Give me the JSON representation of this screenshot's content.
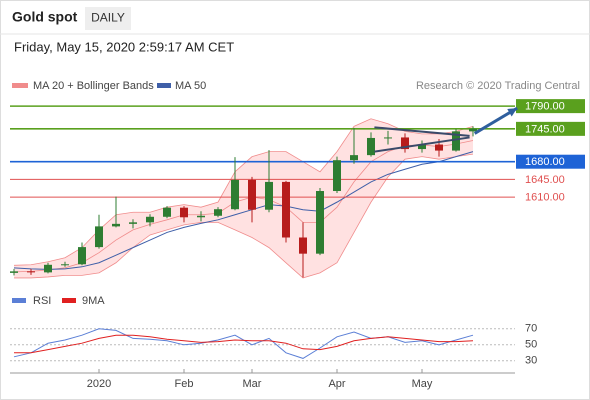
{
  "chart_data": {
    "type": "candlestick",
    "title": "Gold spot",
    "timeframe": "DAILY",
    "subtitle": "Friday, May 15, 2020 2:59:17 AM CET",
    "credit": "Research © 2020 Trading Central",
    "categories": [
      null,
      null,
      null,
      null,
      null,
      "2020",
      null,
      null,
      null,
      null,
      "Feb",
      null,
      null,
      null,
      "Mar",
      null,
      null,
      null,
      null,
      "Apr",
      null,
      null,
      null,
      null,
      "May",
      null,
      null,
      null
    ],
    "open": [
      1460,
      1463,
      1461,
      1476,
      1477,
      1511,
      1552,
      1557,
      1560,
      1571,
      1589,
      1570,
      1573,
      1586,
      1644,
      1585,
      1640,
      1530,
      1498,
      1622,
      1683,
      1693,
      1727,
      1728,
      1705,
      1714,
      1702,
      1740
    ],
    "high": [
      1468,
      1468,
      1480,
      1482,
      1520,
      1575,
      1611,
      1566,
      1576,
      1592,
      1592,
      1582,
      1590,
      1689,
      1650,
      1703,
      1642,
      1560,
      1628,
      1690,
      1747,
      1738,
      1741,
      1736,
      1722,
      1725,
      1745,
      1750
    ],
    "low": [
      1455,
      1456,
      1459,
      1472,
      1475,
      1508,
      1550,
      1548,
      1552,
      1568,
      1560,
      1562,
      1570,
      1584,
      1560,
      1580,
      1520,
      1451,
      1495,
      1618,
      1676,
      1690,
      1714,
      1698,
      1698,
      1690,
      1700,
      1730
    ],
    "close": [
      1463,
      1461,
      1476,
      1477,
      1511,
      1552,
      1557,
      1560,
      1571,
      1589,
      1570,
      1573,
      1586,
      1644,
      1585,
      1640,
      1530,
      1498,
      1622,
      1683,
      1693,
      1727,
      1728,
      1705,
      1714,
      1702,
      1740,
      1745
    ],
    "up_color": "#2e7d32",
    "down_color": "#b71c1c",
    "ylim": [
      1436,
      1812
    ],
    "bands": {
      "name": "MA 20 + Bollinger Bands",
      "color": "#f08c8c",
      "fill": "#ffdcdc",
      "middle": [
        1462,
        1463,
        1466,
        1470,
        1480,
        1500,
        1525,
        1545,
        1556,
        1565,
        1575,
        1575,
        1578,
        1600,
        1610,
        1605,
        1590,
        1560,
        1560,
        1590,
        1640,
        1680,
        1700,
        1712,
        1713,
        1710,
        1715,
        1722
      ],
      "upper": [
        1475,
        1476,
        1482,
        1490,
        1510,
        1545,
        1575,
        1580,
        1580,
        1590,
        1595,
        1590,
        1600,
        1660,
        1690,
        1700,
        1700,
        1680,
        1660,
        1700,
        1750,
        1765,
        1755,
        1740,
        1735,
        1735,
        1740,
        1750
      ],
      "lower": [
        1450,
        1450,
        1452,
        1455,
        1455,
        1460,
        1480,
        1510,
        1535,
        1545,
        1555,
        1560,
        1560,
        1545,
        1530,
        1510,
        1480,
        1450,
        1460,
        1480,
        1540,
        1600,
        1650,
        1685,
        1690,
        1685,
        1690,
        1695
      ]
    },
    "series": [
      {
        "name": "MA 50",
        "color": "#3f5fa8",
        "values": [
          1470,
          1468,
          1467,
          1468,
          1472,
          1480,
          1495,
          1510,
          1525,
          1540,
          1550,
          1558,
          1565,
          1575,
          1585,
          1595,
          1592,
          1585,
          1582,
          1600,
          1620,
          1640,
          1655,
          1665,
          1675,
          1680,
          1690,
          1700
        ]
      }
    ],
    "levels": [
      {
        "value": 1790,
        "label": "1790.00",
        "color": "#5aa01e",
        "boxed": true
      },
      {
        "value": 1745,
        "label": "1745.00",
        "color": "#5aa01e",
        "boxed": true
      },
      {
        "value": 1680,
        "label": "1680.00",
        "color": "#1e63d6",
        "boxed": true
      },
      {
        "value": 1645,
        "label": "1645.00",
        "color": "#e05050",
        "boxed": false
      },
      {
        "value": 1610,
        "label": "1610.00",
        "color": "#e05050",
        "boxed": false
      }
    ],
    "trendlines": [
      {
        "x": [
          21.2,
          26.8
        ],
        "y": [
          1748,
          1731
        ]
      },
      {
        "x": [
          21.2,
          26.8
        ],
        "y": [
          1700,
          1728
        ]
      }
    ],
    "arrow": {
      "x": [
        27.1,
        29.6
      ],
      "y": [
        1736,
        1786
      ],
      "color": "#2f5f9e"
    },
    "rsi": {
      "ylim": [
        16,
        81
      ],
      "yticks": [
        30,
        50,
        70
      ],
      "series": [
        {
          "name": "RSI",
          "color": "#5b7fd6",
          "values": [
            35,
            40,
            52,
            56,
            62,
            70,
            68,
            58,
            57,
            55,
            50,
            52,
            56,
            62,
            50,
            58,
            40,
            33,
            46,
            60,
            66,
            58,
            60,
            53,
            55,
            50,
            56,
            62
          ]
        },
        {
          "name": "9MA",
          "color": "#e02020",
          "values": [
            40,
            40,
            44,
            48,
            52,
            58,
            62,
            62,
            60,
            57,
            55,
            53,
            54,
            56,
            55,
            55,
            52,
            45,
            44,
            48,
            55,
            58,
            60,
            58,
            56,
            54,
            54,
            55
          ]
        }
      ]
    }
  }
}
